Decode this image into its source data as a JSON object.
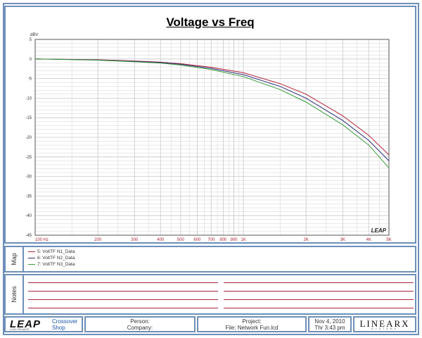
{
  "chart_data": {
    "type": "line",
    "title": "Voltage vs Freq",
    "ylabel": "dBV",
    "xscale": "log",
    "xlim": [
      100,
      5000
    ],
    "ylim": [
      -45,
      5
    ],
    "grid": true,
    "y_ticks": [
      "5",
      "0",
      "-5",
      "-10",
      "-15",
      "-20",
      "-25",
      "-30",
      "-35",
      "-40",
      "-45"
    ],
    "x_tick_values": [
      100,
      200,
      300,
      400,
      500,
      600,
      700,
      800,
      900,
      1000,
      2000,
      3000,
      4000,
      5000
    ],
    "x_tick_labels": [
      "100 Hz",
      "200",
      "300",
      "400",
      "500",
      "600",
      "700",
      "800",
      "900",
      "1K",
      "2K",
      "3K",
      "4K",
      "5K"
    ],
    "series": [
      {
        "name": "5: VoltTF N1_Data",
        "color": "#b0233a",
        "x": [
          100,
          200,
          300,
          400,
          500,
          700,
          1000,
          1500,
          2000,
          3000,
          4000,
          5000
        ],
        "values": [
          0.0,
          -0.2,
          -0.5,
          -0.8,
          -1.2,
          -2.1,
          -3.5,
          -6.3,
          -9.0,
          -14.5,
          -19.5,
          -24.5
        ]
      },
      {
        "name": "6: VoltTF N2_Data",
        "color": "#2b2f7a",
        "x": [
          100,
          200,
          300,
          400,
          500,
          700,
          1000,
          1500,
          2000,
          3000,
          4000,
          5000
        ],
        "values": [
          0.0,
          -0.25,
          -0.6,
          -0.9,
          -1.35,
          -2.4,
          -4.0,
          -7.0,
          -10.0,
          -15.7,
          -20.8,
          -26.0
        ]
      },
      {
        "name": "7: VoltTF N3_Data",
        "color": "#3a9a3a",
        "x": [
          100,
          200,
          300,
          400,
          500,
          700,
          1000,
          1500,
          2000,
          3000,
          4000,
          5000
        ],
        "values": [
          0.0,
          -0.3,
          -0.7,
          -1.05,
          -1.55,
          -2.7,
          -4.5,
          -7.8,
          -11.0,
          -16.8,
          -22.0,
          -27.8
        ]
      }
    ],
    "watermark": "LEAP"
  },
  "panels": {
    "map_label": "Map",
    "notes_label": "Notes"
  },
  "footer": {
    "logo": "LEAP",
    "logo_sub": "LOUD SPEAKER",
    "product_line1": "Crossover",
    "product_line2": "Shop",
    "person_label": "Person:",
    "company_label": "Company:",
    "project_label": "Project:",
    "file_label": "File: Network Fun.lcd",
    "date": "Nov  4, 2010",
    "time": "Thr   3:43 pm",
    "brand": "LINEARX",
    "brand_sub": "SYSTEMS"
  },
  "colors": {
    "frame": "#6d8fb8",
    "grid": "#c8c8c8",
    "x_tick_text": "#a8243a",
    "note_lines": "#a8243a"
  }
}
